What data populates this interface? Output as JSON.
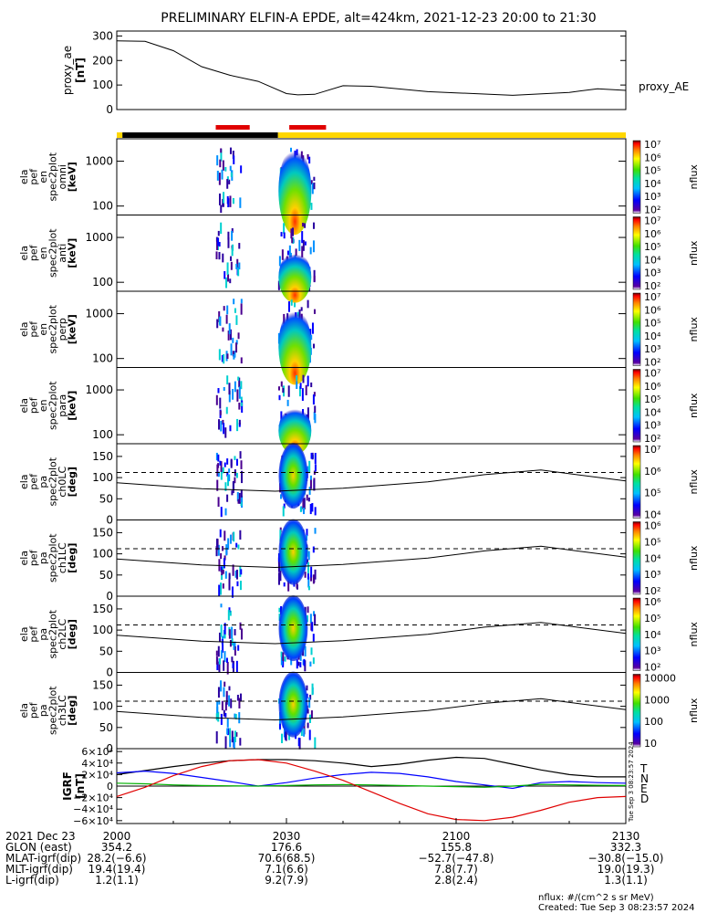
{
  "title": "PRELIMINARY ELFIN-A EPDE, alt=424km, 2021-12-23 20:00 to 21:30",
  "colors": {
    "black": "#000000",
    "red": "#e00000",
    "blue": "#0000ff",
    "green": "#00b000",
    "yellow": "#ffd700"
  },
  "chart_data": [
    {
      "type": "line",
      "panel": "proxy_ae",
      "ylabel_lines": [
        "proxy_ae",
        "[nT]"
      ],
      "series_label": "proxy_AE",
      "yticks": [
        "0",
        "100",
        "200",
        "300"
      ],
      "ylim": [
        0,
        320
      ],
      "xlim_min": [
        0,
        90
      ],
      "x": [
        0,
        5,
        10,
        15,
        20,
        25,
        30,
        32,
        35,
        40,
        45,
        55,
        60,
        70,
        80,
        85,
        90
      ],
      "y": [
        280,
        278,
        240,
        175,
        140,
        115,
        65,
        60,
        62,
        97,
        95,
        73,
        68,
        58,
        70,
        85,
        78
      ]
    },
    {
      "type": "bar",
      "panel": "orbit-bar",
      "segments": [
        {
          "from": 0,
          "to": 1,
          "color": "#ffd700"
        },
        {
          "from": 1,
          "to": 28.5,
          "color": "#000000"
        },
        {
          "from": 28.5,
          "to": 90,
          "color": "#ffd700"
        }
      ],
      "red_marks": [
        [
          17.5,
          23.5
        ],
        [
          30.5,
          37
        ]
      ]
    },
    {
      "type": "heatmap",
      "panel": "spectra",
      "panels": [
        {
          "ylabel_lines": [
            "ela",
            "pef",
            "en",
            "spec2plot",
            "omni",
            "[keV]"
          ],
          "yticks": [
            "100",
            "1000"
          ]
        },
        {
          "ylabel_lines": [
            "ela",
            "pef",
            "en",
            "spec2plot",
            "anti",
            "[keV]"
          ],
          "yticks": [
            "100",
            "1000"
          ]
        },
        {
          "ylabel_lines": [
            "ela",
            "pef",
            "en",
            "spec2plot",
            "perp",
            "[keV]"
          ],
          "yticks": [
            "100",
            "1000"
          ]
        },
        {
          "ylabel_lines": [
            "ela",
            "pef",
            "en",
            "spec2plot",
            "para",
            "[keV]"
          ],
          "yticks": [
            "100",
            "1000"
          ]
        }
      ],
      "colorbar_label": "nflux",
      "colorbar_ticks": [
        "10²",
        "10³",
        "10⁴",
        "10⁵",
        "10⁶",
        "10⁷"
      ]
    },
    {
      "type": "heatmap",
      "panel": "pitch-angle",
      "yticks": [
        "0",
        "50",
        "100",
        "150"
      ],
      "panels": [
        {
          "ylabel_lines": [
            "ela",
            "pef",
            "pa",
            "spec2plot",
            "ch0LC",
            "[deg]"
          ],
          "colorbar_ticks": [
            "10⁴",
            "10⁵",
            "10⁶",
            "10⁷"
          ]
        },
        {
          "ylabel_lines": [
            "ela",
            "pef",
            "pa",
            "spec2plot",
            "ch1LC",
            "[deg]"
          ],
          "colorbar_ticks": [
            "10²",
            "10³",
            "10⁴",
            "10⁵",
            "10⁶"
          ]
        },
        {
          "ylabel_lines": [
            "ela",
            "pef",
            "pa",
            "spec2plot",
            "ch2LC",
            "[deg]"
          ],
          "colorbar_ticks": [
            "10²",
            "10³",
            "10⁴",
            "10⁵",
            "10⁶"
          ]
        },
        {
          "ylabel_lines": [
            "ela",
            "pef",
            "pa",
            "spec2plot",
            "ch3LC",
            "[deg]"
          ],
          "colorbar_ticks": [
            "10",
            "100",
            "1000",
            "10000"
          ]
        }
      ],
      "colorbar_label": "nflux",
      "lc_x": [
        0,
        15,
        28,
        40,
        55,
        65,
        75,
        90
      ],
      "lc_y": [
        88,
        74,
        68,
        75,
        90,
        107,
        118,
        92
      ],
      "dashed_level": 112
    },
    {
      "type": "line",
      "panel": "igrf",
      "ylabel_lines": [
        "IGRF",
        "[nT]"
      ],
      "yticks": [
        "−6×10⁴",
        "−4×10⁴",
        "−2×10⁴",
        "0",
        "2×10⁴",
        "4×10⁴",
        "6×10⁴"
      ],
      "ylim": [
        -65000,
        65000
      ],
      "legend": [
        "T",
        "N",
        "E",
        "D"
      ],
      "x": [
        0,
        5,
        10,
        15,
        20,
        25,
        30,
        35,
        40,
        45,
        50,
        55,
        60,
        65,
        70,
        75,
        80,
        85,
        90
      ],
      "series": [
        {
          "name": "T",
          "color": "#000000",
          "values": [
            20000,
            27000,
            34000,
            40000,
            44000,
            46000,
            46000,
            44000,
            40000,
            34000,
            38000,
            45000,
            50000,
            48000,
            38000,
            28000,
            20000,
            16000,
            16000
          ]
        },
        {
          "name": "N",
          "color": "#0000ff",
          "values": [
            23000,
            26000,
            22000,
            15000,
            8000,
            0,
            6000,
            14000,
            20000,
            24000,
            22000,
            16000,
            8000,
            2000,
            -4000,
            6000,
            8000,
            6000,
            5000
          ]
        },
        {
          "name": "E",
          "color": "#00b000",
          "values": [
            5000,
            4000,
            2000,
            1000,
            500,
            0,
            1000,
            2000,
            2500,
            2000,
            1000,
            0,
            -1000,
            -2000,
            0,
            3000,
            2000,
            1500,
            1000
          ]
        },
        {
          "name": "D",
          "color": "#e00000",
          "values": [
            -18000,
            -2000,
            18000,
            34000,
            44000,
            46000,
            40000,
            26000,
            10000,
            -10000,
            -30000,
            -48000,
            -58000,
            -60000,
            -54000,
            -42000,
            -28000,
            -20000,
            -18000
          ]
        }
      ]
    }
  ],
  "side_text": [
    "Tue Sep  3 08:23:57 2024",
    "Tue Sep  3 08:23:57 2024"
  ],
  "xaxis": {
    "tick_labels": [
      "2000",
      "2030",
      "2100",
      "2130"
    ],
    "rows": [
      {
        "label": "2021 Dec 23",
        "values": [
          "2000",
          "2030",
          "2100",
          "2130"
        ]
      },
      {
        "label": "GLON (east)",
        "values": [
          "354.2",
          "176.6",
          "155.8",
          "332.3"
        ]
      },
      {
        "label": "MLAT-igrf(dip)",
        "values": [
          "28.2(−6.6)",
          "70.6(68.5)",
          "−52.7(−47.8)",
          "−30.8(−15.0)"
        ]
      },
      {
        "label": "MLT-igrf(dip)",
        "values": [
          "19.4(19.4)",
          "7.1(6.6)",
          "7.8(7.7)",
          "19.0(19.3)"
        ]
      },
      {
        "label": "L-igrf(dip)",
        "values": [
          "1.2(1.1)",
          "9.2(7.9)",
          "2.8(2.4)",
          "1.3(1.1)"
        ]
      }
    ]
  },
  "footer": {
    "units": "nflux: #/(cm^2 s sr MeV)",
    "created": "Created: Tue Sep  3 08:23:57 2024"
  }
}
